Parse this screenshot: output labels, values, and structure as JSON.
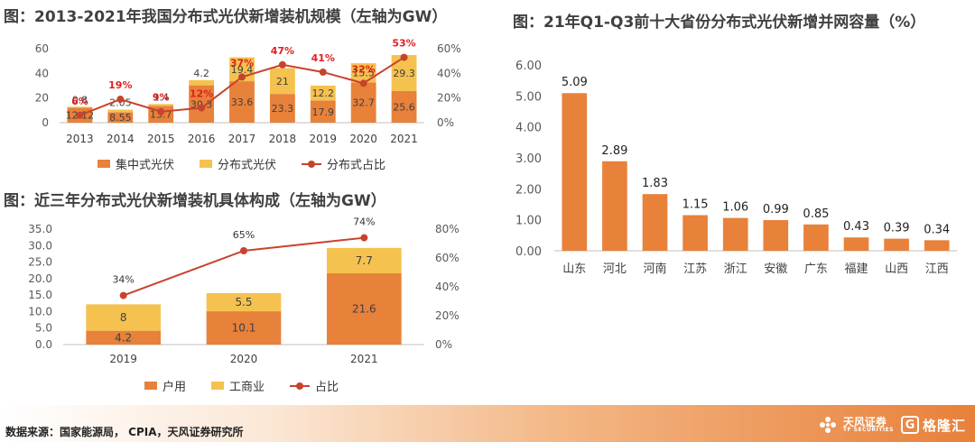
{
  "colors": {
    "orange": "#e8813a",
    "yellow": "#f5c24f",
    "red_line": "#c8432c",
    "red_label": "#e02020",
    "grid": "#d9d9d9"
  },
  "footer": {
    "source": "数据来源：国家能源局， CPIA，天风证券研究所",
    "brand_name": "天风证券",
    "brand_en": "TF SECURITIES",
    "brand_g": "G",
    "brand_gelonghui": "格隆汇"
  },
  "chart_data": [
    {
      "id": "c1",
      "type": "bar",
      "title": "图：2013-2021年我国分布式光伏新增装机规模（左轴为GW）",
      "categories": [
        "2013",
        "2014",
        "2015",
        "2016",
        "2017",
        "2018",
        "2019",
        "2020",
        "2021"
      ],
      "series": [
        {
          "name": "集中式光伏",
          "values": [
            12.12,
            8.55,
            13.7,
            30.3,
            33.6,
            23.3,
            17.9,
            32.7,
            25.6
          ]
        },
        {
          "name": "分布式光伏",
          "values": [
            0.8,
            2.05,
            1.4,
            4.2,
            19.4,
            21.0,
            12.2,
            15.5,
            29.3
          ]
        },
        {
          "name": "分布式占比",
          "axis": "right",
          "values": [
            6,
            19,
            9,
            12,
            37,
            47,
            41,
            32,
            53
          ],
          "labels": [
            "6%",
            "19%",
            "9%",
            "12%",
            "37%",
            "47%",
            "41%",
            "32%",
            "53%"
          ]
        }
      ],
      "y_left": {
        "min": 0,
        "max": 60,
        "ticks": [
          "0",
          "20",
          "40",
          "60"
        ]
      },
      "y_right": {
        "min": 0,
        "max": 60,
        "ticks": [
          "0%",
          "20%",
          "40%",
          "60%"
        ]
      },
      "legend_position": "bottom",
      "grid": false
    },
    {
      "id": "c2",
      "type": "bar",
      "title": "图：近三年分布式光伏新增装机具体构成（左轴为GW）",
      "categories": [
        "2019",
        "2020",
        "2021"
      ],
      "series": [
        {
          "name": "户用",
          "values": [
            4.2,
            10.1,
            21.6
          ]
        },
        {
          "name": "工商业",
          "values": [
            8.0,
            5.5,
            7.7
          ]
        },
        {
          "name": "占比",
          "axis": "right",
          "values": [
            34,
            65,
            74
          ],
          "labels": [
            "34%",
            "65%",
            "74%"
          ]
        }
      ],
      "y_left": {
        "min": 0,
        "max": 35,
        "ticks": [
          "0.0",
          "5.0",
          "10.0",
          "15.0",
          "20.0",
          "25.0",
          "30.0",
          "35.0"
        ]
      },
      "y_right": {
        "min": 0,
        "max": 80,
        "ticks": [
          "0%",
          "20%",
          "40%",
          "60%",
          "80%"
        ]
      },
      "legend_position": "bottom",
      "grid": false
    },
    {
      "id": "c3",
      "type": "bar",
      "title": "图：21年Q1-Q3前十大省份分布式光伏新增并网容量（%）",
      "categories": [
        "山东",
        "河北",
        "河南",
        "江苏",
        "浙江",
        "安徽",
        "广东",
        "福建",
        "山西",
        "江西"
      ],
      "values": [
        5.09,
        2.89,
        1.83,
        1.15,
        1.06,
        0.99,
        0.85,
        0.43,
        0.39,
        0.34
      ],
      "value_labels": [
        "5.09",
        "2.89",
        "1.83",
        "1.15",
        "1.06",
        "0.99",
        "0.85",
        "0.43",
        "0.39",
        "0.34"
      ],
      "y_left": {
        "min": 0,
        "max": 6,
        "ticks": [
          "0.00",
          "1.00",
          "2.00",
          "3.00",
          "4.00",
          "5.00",
          "6.00"
        ]
      },
      "grid": false
    }
  ]
}
